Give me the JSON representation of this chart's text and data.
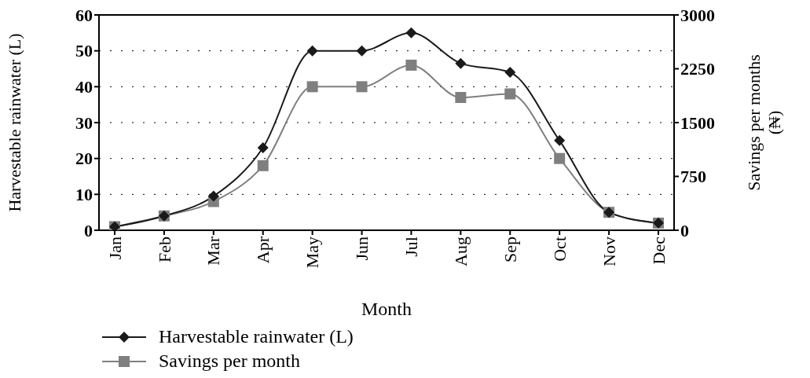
{
  "chart_data": {
    "type": "line",
    "xlabel": "Month",
    "ylabel": "Harvestable rainwater (L)",
    "y2label": "Savings per months (₦)",
    "categories": [
      "Jan",
      "Feb",
      "Mar",
      "Apr",
      "May",
      "Jun",
      "Jul",
      "Aug",
      "Sep",
      "Oct",
      "Nov",
      "Dec"
    ],
    "series": [
      {
        "name": "Harvestable rainwater (L)",
        "color": "#1a1a1a",
        "marker": "diamond",
        "values": [
          1,
          4,
          9.5,
          23,
          50,
          50,
          55,
          46.5,
          44,
          25,
          5,
          2
        ]
      },
      {
        "name": "Savings per month",
        "color": "#7f7f7f",
        "marker": "square",
        "axis": "y2",
        "values": [
          50,
          200,
          400,
          900,
          2000,
          2000,
          2300,
          1850,
          1900,
          1000,
          250,
          100
        ]
      }
    ],
    "ylim": [
      0,
      60
    ],
    "yticks": [
      0,
      10,
      20,
      30,
      40,
      50,
      60
    ],
    "y2lim": [
      0,
      3000
    ],
    "y2ticks": [
      0,
      750,
      1500,
      2250,
      3000
    ],
    "grid": "y",
    "legend": "bottom left",
    "line_style": "solid"
  }
}
